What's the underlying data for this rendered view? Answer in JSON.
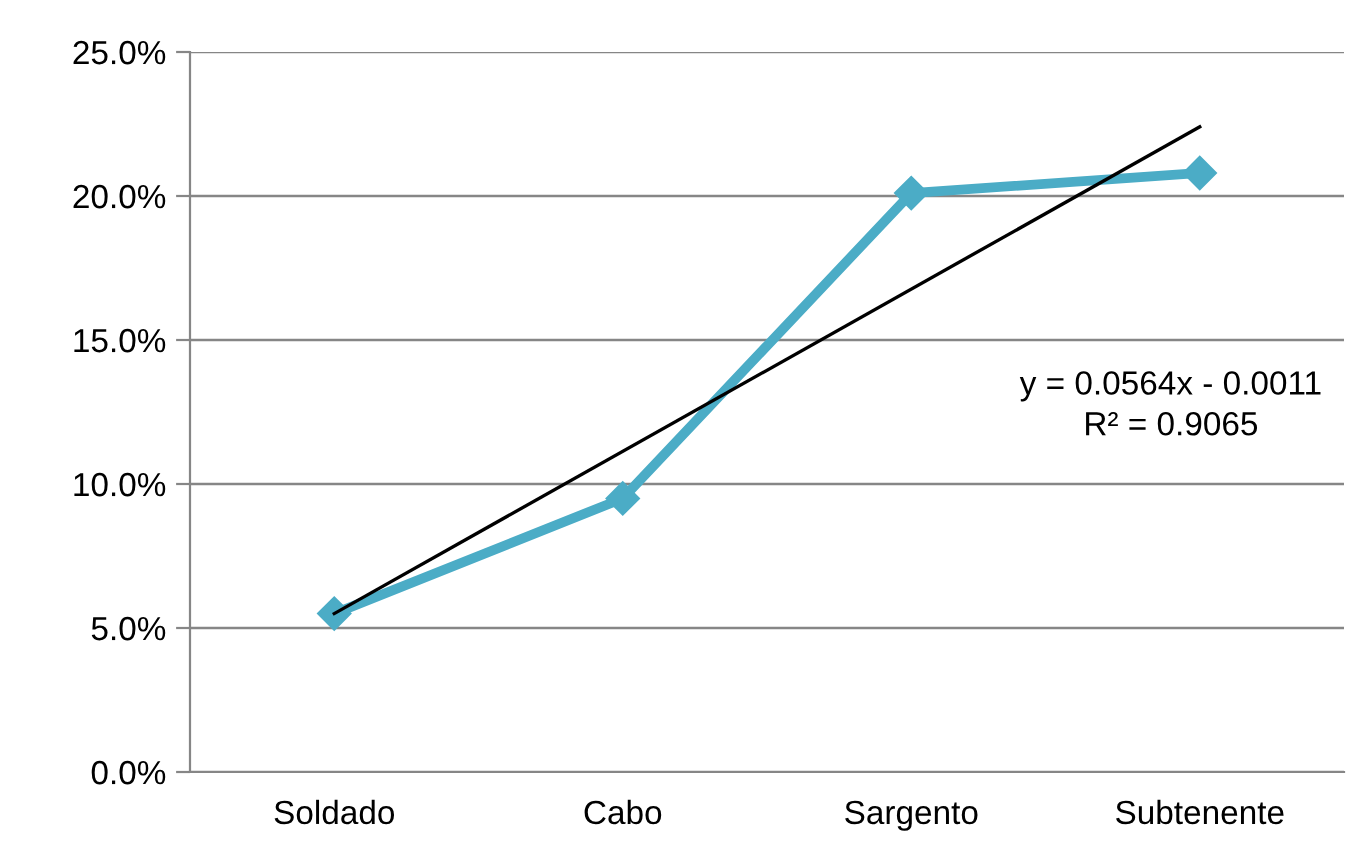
{
  "chart_data": {
    "type": "line",
    "categories": [
      "Soldado",
      "Cabo",
      "Sargento",
      "Subtenente"
    ],
    "series": [
      {
        "color": "#4bacc6",
        "values": [
          5.5,
          9.5,
          20.1,
          20.8
        ],
        "marker": "diamond",
        "line_style": "solid"
      },
      {
        "color": "#000000",
        "x": [
          "Soldado",
          "Subtenente"
        ],
        "values": [
          5.5,
          22.4
        ],
        "marker": "none",
        "line_style": "solid"
      }
    ],
    "ylim": [
      0,
      25
    ],
    "yticks": [
      {
        "value": 0,
        "label": "0.0%"
      },
      {
        "value": 5,
        "label": "5.0%"
      },
      {
        "value": 10,
        "label": "10.0%"
      },
      {
        "value": 15,
        "label": "15.0%"
      },
      {
        "value": 20,
        "label": "20.0%"
      },
      {
        "value": 25,
        "label": "25.0%"
      }
    ],
    "grid": "y",
    "legend": false,
    "annotations": [
      "y = 0.0564x - 0.0011\nR² = 0.9065"
    ]
  }
}
